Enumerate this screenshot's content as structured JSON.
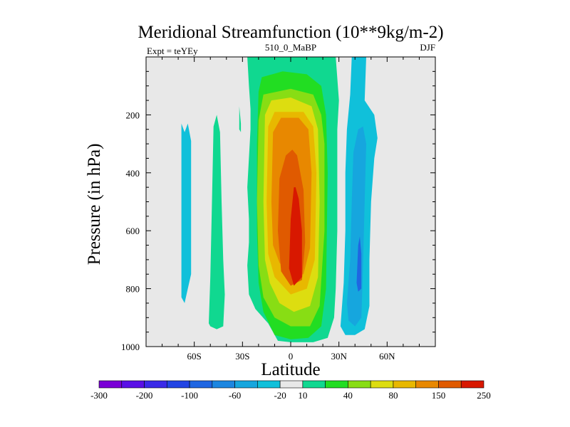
{
  "chart_data": {
    "type": "contour",
    "title": "Meridional Streamfunction (10**9kg/m-2)",
    "subtitle_left": "Expt = teYEy",
    "subtitle_center": "510_0_MaBP",
    "subtitle_right": "DJF",
    "xlabel": "Latitude",
    "ylabel": "Pressure (in hPa)",
    "xlim": [
      -90,
      90
    ],
    "ylim": [
      1000,
      0
    ],
    "x_ticks": [
      {
        "value": -60,
        "label": "60S"
      },
      {
        "value": -30,
        "label": "30S"
      },
      {
        "value": 0,
        "label": "0"
      },
      {
        "value": 30,
        "label": "30N"
      },
      {
        "value": 60,
        "label": "60N"
      }
    ],
    "y_ticks": [
      {
        "value": 200,
        "label": "200"
      },
      {
        "value": 400,
        "label": "400"
      },
      {
        "value": 600,
        "label": "600"
      },
      {
        "value": 800,
        "label": "800"
      },
      {
        "value": 1000,
        "label": "1000"
      }
    ],
    "colorbar": {
      "colors": [
        "#7a00d6",
        "#5a10e6",
        "#3a2ae8",
        "#2244e4",
        "#1f66e2",
        "#1c86e0",
        "#16a6de",
        "#10c0da",
        "#e8e8e8",
        "#10d890",
        "#22dd22",
        "#88dd14",
        "#dddd10",
        "#e8b800",
        "#e88800",
        "#e05a00",
        "#d81800"
      ],
      "labels": [
        {
          "after_index": 0,
          "label": "-300"
        },
        {
          "after_index": 2,
          "label": "-200"
        },
        {
          "after_index": 4,
          "label": "-100"
        },
        {
          "after_index": 6,
          "label": "-60"
        },
        {
          "after_index": 8,
          "label": "-20"
        },
        {
          "after_index": 9,
          "label": "10"
        },
        {
          "after_index": 11,
          "label": "40"
        },
        {
          "after_index": 13,
          "label": "80"
        },
        {
          "after_index": 15,
          "label": "150"
        },
        {
          "after_index": 17,
          "label": "250"
        }
      ]
    },
    "regions": [
      {
        "name": "cell-sh-outer",
        "color": "#10c0da",
        "points": [
          [
            -68,
            780
          ],
          [
            -68,
            230
          ],
          [
            -66,
            260
          ],
          [
            -64,
            230
          ],
          [
            -62,
            290
          ],
          [
            -62,
            750
          ],
          [
            -64,
            800
          ],
          [
            -66,
            850
          ],
          [
            -68,
            830
          ]
        ]
      },
      {
        "name": "cell-sh-mid",
        "color": "#10d890",
        "points": [
          [
            -51,
            920
          ],
          [
            -50,
            760
          ],
          [
            -49,
            500
          ],
          [
            -48,
            240
          ],
          [
            -46,
            200
          ],
          [
            -44,
            260
          ],
          [
            -43,
            500
          ],
          [
            -42,
            700
          ],
          [
            -41,
            820
          ],
          [
            -42,
            930
          ],
          [
            -46,
            940
          ],
          [
            -50,
            930
          ]
        ]
      },
      {
        "name": "cell-sh-thin",
        "color": "#10d890",
        "points": [
          [
            -32,
            250
          ],
          [
            -32,
            170
          ],
          [
            -31,
            230
          ],
          [
            -31,
            260
          ]
        ]
      },
      {
        "name": "hadley-10",
        "color": "#10d890",
        "points": [
          [
            -27,
            0
          ],
          [
            -26,
            100
          ],
          [
            -25,
            180
          ],
          [
            -25,
            250
          ],
          [
            -27,
            450
          ],
          [
            -26,
            560
          ],
          [
            -26,
            640
          ],
          [
            -27,
            720
          ],
          [
            -26,
            820
          ],
          [
            -22,
            870
          ],
          [
            -14,
            920
          ],
          [
            -8,
            980
          ],
          [
            0,
            985
          ],
          [
            14,
            985
          ],
          [
            23,
            970
          ],
          [
            27,
            900
          ],
          [
            28,
            800
          ],
          [
            29,
            600
          ],
          [
            29,
            400
          ],
          [
            29,
            250
          ],
          [
            30,
            150
          ],
          [
            28,
            0
          ]
        ]
      },
      {
        "name": "hadley-40",
        "color": "#22dd22",
        "points": [
          [
            -18,
            70
          ],
          [
            -20,
            120
          ],
          [
            -21,
            300
          ],
          [
            -21,
            600
          ],
          [
            -20,
            780
          ],
          [
            -17,
            880
          ],
          [
            -10,
            960
          ],
          [
            0,
            975
          ],
          [
            11,
            970
          ],
          [
            19,
            930
          ],
          [
            22,
            800
          ],
          [
            23,
            400
          ],
          [
            22,
            200
          ],
          [
            19,
            100
          ],
          [
            10,
            60
          ],
          [
            -5,
            50
          ]
        ]
      },
      {
        "name": "hadley-80",
        "color": "#88dd14",
        "points": [
          [
            -17,
            130
          ],
          [
            -20,
            220
          ],
          [
            -21,
            500
          ],
          [
            -20,
            720
          ],
          [
            -17,
            830
          ],
          [
            -10,
            900
          ],
          [
            0,
            930
          ],
          [
            12,
            930
          ],
          [
            18,
            860
          ],
          [
            21,
            600
          ],
          [
            21,
            300
          ],
          [
            19,
            200
          ],
          [
            14,
            130
          ],
          [
            0,
            110
          ]
        ]
      },
      {
        "name": "hadley-120",
        "color": "#dddd10",
        "points": [
          [
            -12,
            150
          ],
          [
            -16,
            200
          ],
          [
            -17,
            500
          ],
          [
            -16,
            700
          ],
          [
            -13,
            780
          ],
          [
            -7,
            850
          ],
          [
            2,
            880
          ],
          [
            12,
            860
          ],
          [
            17,
            760
          ],
          [
            18,
            500
          ],
          [
            17,
            250
          ],
          [
            13,
            170
          ],
          [
            0,
            140
          ]
        ]
      },
      {
        "name": "hadley-150",
        "color": "#e8b800",
        "points": [
          [
            -10,
            190
          ],
          [
            -14,
            240
          ],
          [
            -15,
            500
          ],
          [
            -14,
            680
          ],
          [
            -10,
            760
          ],
          [
            0,
            820
          ],
          [
            10,
            800
          ],
          [
            15,
            700
          ],
          [
            16,
            400
          ],
          [
            14,
            240
          ],
          [
            8,
            190
          ]
        ]
      },
      {
        "name": "hadley-200",
        "color": "#e88800",
        "points": [
          [
            -6,
            210
          ],
          [
            -11,
            260
          ],
          [
            -12,
            500
          ],
          [
            -11,
            650
          ],
          [
            -7,
            710
          ],
          [
            0,
            760
          ],
          [
            8,
            750
          ],
          [
            12,
            660
          ],
          [
            13,
            400
          ],
          [
            11,
            250
          ],
          [
            5,
            210
          ]
        ]
      },
      {
        "name": "hadley-250",
        "color": "#e05a00",
        "points": [
          [
            -3,
            340
          ],
          [
            -7,
            420
          ],
          [
            -8,
            600
          ],
          [
            -6,
            740
          ],
          [
            0,
            790
          ],
          [
            7,
            770
          ],
          [
            9,
            640
          ],
          [
            8,
            460
          ],
          [
            4,
            340
          ],
          [
            1,
            320
          ]
        ]
      },
      {
        "name": "hadley-300",
        "color": "#d81800",
        "points": [
          [
            2,
            450
          ],
          [
            0,
            560
          ],
          [
            -1,
            730
          ],
          [
            2,
            790
          ],
          [
            7,
            760
          ],
          [
            7,
            600
          ],
          [
            5,
            490
          ],
          [
            3,
            450
          ]
        ]
      },
      {
        "name": "cell-nh-outer",
        "color": "#10c0da",
        "points": [
          [
            31,
            930
          ],
          [
            33,
            780
          ],
          [
            34,
            600
          ],
          [
            34,
            400
          ],
          [
            35,
            250
          ],
          [
            37,
            130
          ],
          [
            38,
            0
          ],
          [
            47,
            0
          ],
          [
            46,
            150
          ],
          [
            52,
            200
          ],
          [
            54,
            280
          ],
          [
            52,
            350
          ],
          [
            50,
            500
          ],
          [
            49,
            700
          ],
          [
            49,
            860
          ],
          [
            46,
            940
          ],
          [
            40,
            960
          ],
          [
            34,
            960
          ]
        ]
      },
      {
        "name": "cell-nh-inner",
        "color": "#16a6de",
        "points": [
          [
            35,
            850
          ],
          [
            37,
            700
          ],
          [
            38,
            500
          ],
          [
            39,
            330
          ],
          [
            42,
            250
          ],
          [
            45,
            240
          ],
          [
            47,
            300
          ],
          [
            46,
            500
          ],
          [
            45,
            720
          ],
          [
            44,
            900
          ],
          [
            40,
            930
          ],
          [
            36,
            910
          ]
        ]
      },
      {
        "name": "cell-nh-core",
        "color": "#1f66e2",
        "points": [
          [
            41,
            780
          ],
          [
            42,
            650
          ],
          [
            43,
            620
          ],
          [
            44,
            680
          ],
          [
            44,
            800
          ],
          [
            42,
            810
          ]
        ]
      }
    ]
  }
}
